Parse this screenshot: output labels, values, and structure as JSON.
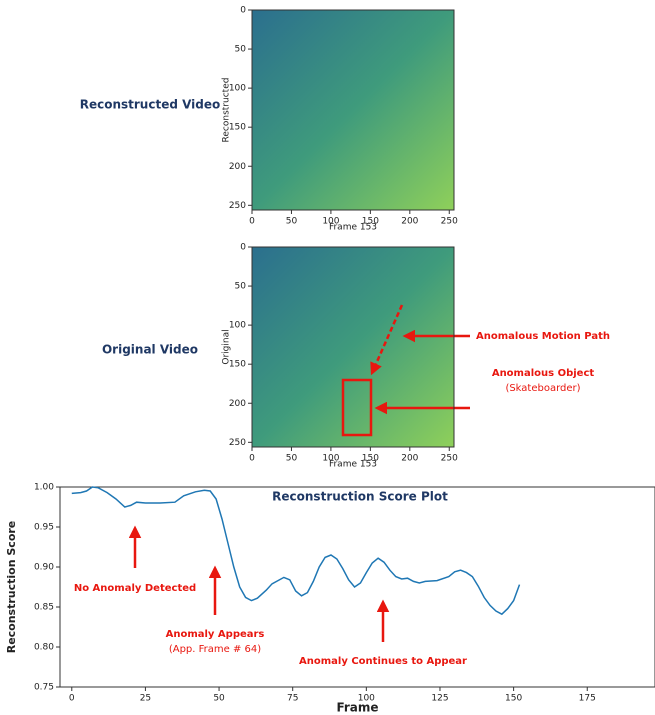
{
  "chart_data": [
    {
      "type": "image",
      "label": "Reconstructed Video",
      "ylabel": "Reconstructed",
      "xlabel": "Frame 153",
      "xlim": [
        0,
        256
      ],
      "ylim": [
        0,
        256
      ],
      "y_inverted": true,
      "xticks": [
        0,
        50,
        100,
        150,
        200,
        250
      ],
      "yticks": [
        0,
        50,
        100,
        150,
        200,
        250
      ]
    },
    {
      "type": "image",
      "label": "Original Video",
      "ylabel": "Original",
      "xlabel": "Frame 153",
      "xlim": [
        0,
        256
      ],
      "ylim": [
        0,
        256
      ],
      "y_inverted": true,
      "xticks": [
        0,
        50,
        100,
        150,
        200,
        250
      ],
      "yticks": [
        0,
        50,
        100,
        150,
        200,
        250
      ],
      "annotations": [
        "Anomalous Motion Path",
        "Anomalous Object",
        "(Skateboarder)"
      ]
    },
    {
      "type": "line",
      "title": "Reconstruction Score Plot",
      "xlabel": "Frame",
      "ylabel": "Reconstruction Score",
      "x": [
        0,
        3,
        5,
        7,
        9,
        12,
        15,
        18,
        20,
        22,
        25,
        30,
        35,
        38,
        42,
        45,
        47,
        49,
        51,
        53,
        55,
        57,
        59,
        61,
        63,
        66,
        68,
        70,
        72,
        74,
        76,
        78,
        80,
        82,
        84,
        86,
        88,
        90,
        92,
        94,
        96,
        98,
        100,
        102,
        104,
        106,
        108,
        110,
        112,
        114,
        116,
        118,
        120,
        124,
        128,
        130,
        132,
        134,
        136,
        138,
        140,
        142,
        144,
        146,
        148,
        150,
        152
      ],
      "series": [
        {
          "color": "#1f77b4",
          "values": [
            0.992,
            0.993,
            0.995,
            1.0,
            0.999,
            0.993,
            0.985,
            0.975,
            0.977,
            0.981,
            0.98,
            0.98,
            0.981,
            0.989,
            0.994,
            0.996,
            0.995,
            0.985,
            0.96,
            0.93,
            0.9,
            0.875,
            0.862,
            0.858,
            0.861,
            0.871,
            0.879,
            0.883,
            0.887,
            0.884,
            0.87,
            0.864,
            0.868,
            0.882,
            0.9,
            0.912,
            0.915,
            0.91,
            0.898,
            0.884,
            0.875,
            0.88,
            0.893,
            0.905,
            0.911,
            0.906,
            0.896,
            0.888,
            0.885,
            0.886,
            0.882,
            0.88,
            0.882,
            0.883,
            0.888,
            0.894,
            0.896,
            0.893,
            0.888,
            0.876,
            0.862,
            0.852,
            0.845,
            0.841,
            0.848,
            0.858,
            0.878
          ]
        }
      ],
      "xlim": [
        -4,
        198
      ],
      "ylim": [
        0.75,
        1.0
      ],
      "xticks": [
        0,
        25,
        50,
        75,
        100,
        125,
        150,
        175
      ],
      "yticks": [
        {
          "value": 0.75,
          "label": "0.75"
        },
        {
          "value": 0.8,
          "label": "0.80"
        },
        {
          "value": 0.85,
          "label": "0.85"
        },
        {
          "value": 0.9,
          "label": "0.90"
        },
        {
          "value": 0.95,
          "label": "0.95"
        },
        {
          "value": 1.0,
          "label": "1.00"
        }
      ],
      "annotations": [
        "No Anomaly Detected",
        "Anomaly Appears",
        "(App. Frame # 64)",
        "Anomaly Continues to Appear"
      ]
    }
  ]
}
